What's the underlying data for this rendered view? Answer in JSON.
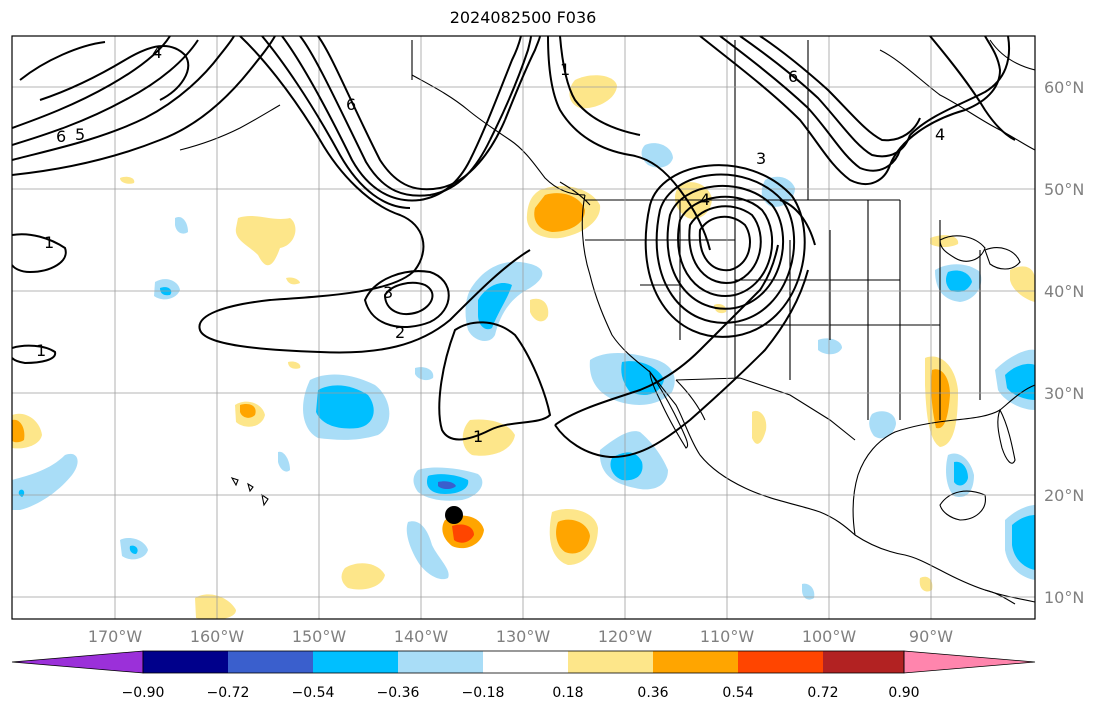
{
  "title": "2024082500 F036",
  "map": {
    "lon_labels": [
      "170°W",
      "160°W",
      "150°W",
      "140°W",
      "130°W",
      "120°W",
      "110°W",
      "100°W",
      "90°W"
    ],
    "lat_labels": [
      "60°N",
      "50°N",
      "40°N",
      "30°N",
      "20°N",
      "10°N"
    ],
    "contour_labels": [
      "1",
      "1",
      "1",
      "2",
      "3",
      "3",
      "4",
      "4",
      "4",
      "5",
      "6",
      "6",
      "6",
      "1"
    ],
    "colors": {
      "neg_090": "#9b30d9",
      "neg_072": "#00008b",
      "neg_054": "#3a5fcd",
      "neg_036": "#00bfff",
      "neg_018": "#a9ddf7",
      "pos_018": "#fde68a",
      "pos_036": "#ffa500",
      "pos_054": "#ff4500",
      "pos_072": "#b22222",
      "pos_090": "#ff85ad",
      "grid": "#9e9e9e",
      "tick_label": "#808080"
    }
  },
  "colorbar": {
    "ticks": [
      "−0.90",
      "−0.72",
      "−0.54",
      "−0.36",
      "−0.18",
      "0.18",
      "0.36",
      "0.54",
      "0.72",
      "0.90"
    ],
    "colors": [
      "#9b30d9",
      "#00008b",
      "#3a5fcd",
      "#00bfff",
      "#a9ddf7",
      "#ffffff",
      "#fde68a",
      "#ffa500",
      "#ff4500",
      "#b22222",
      "#ff85ad"
    ]
  }
}
